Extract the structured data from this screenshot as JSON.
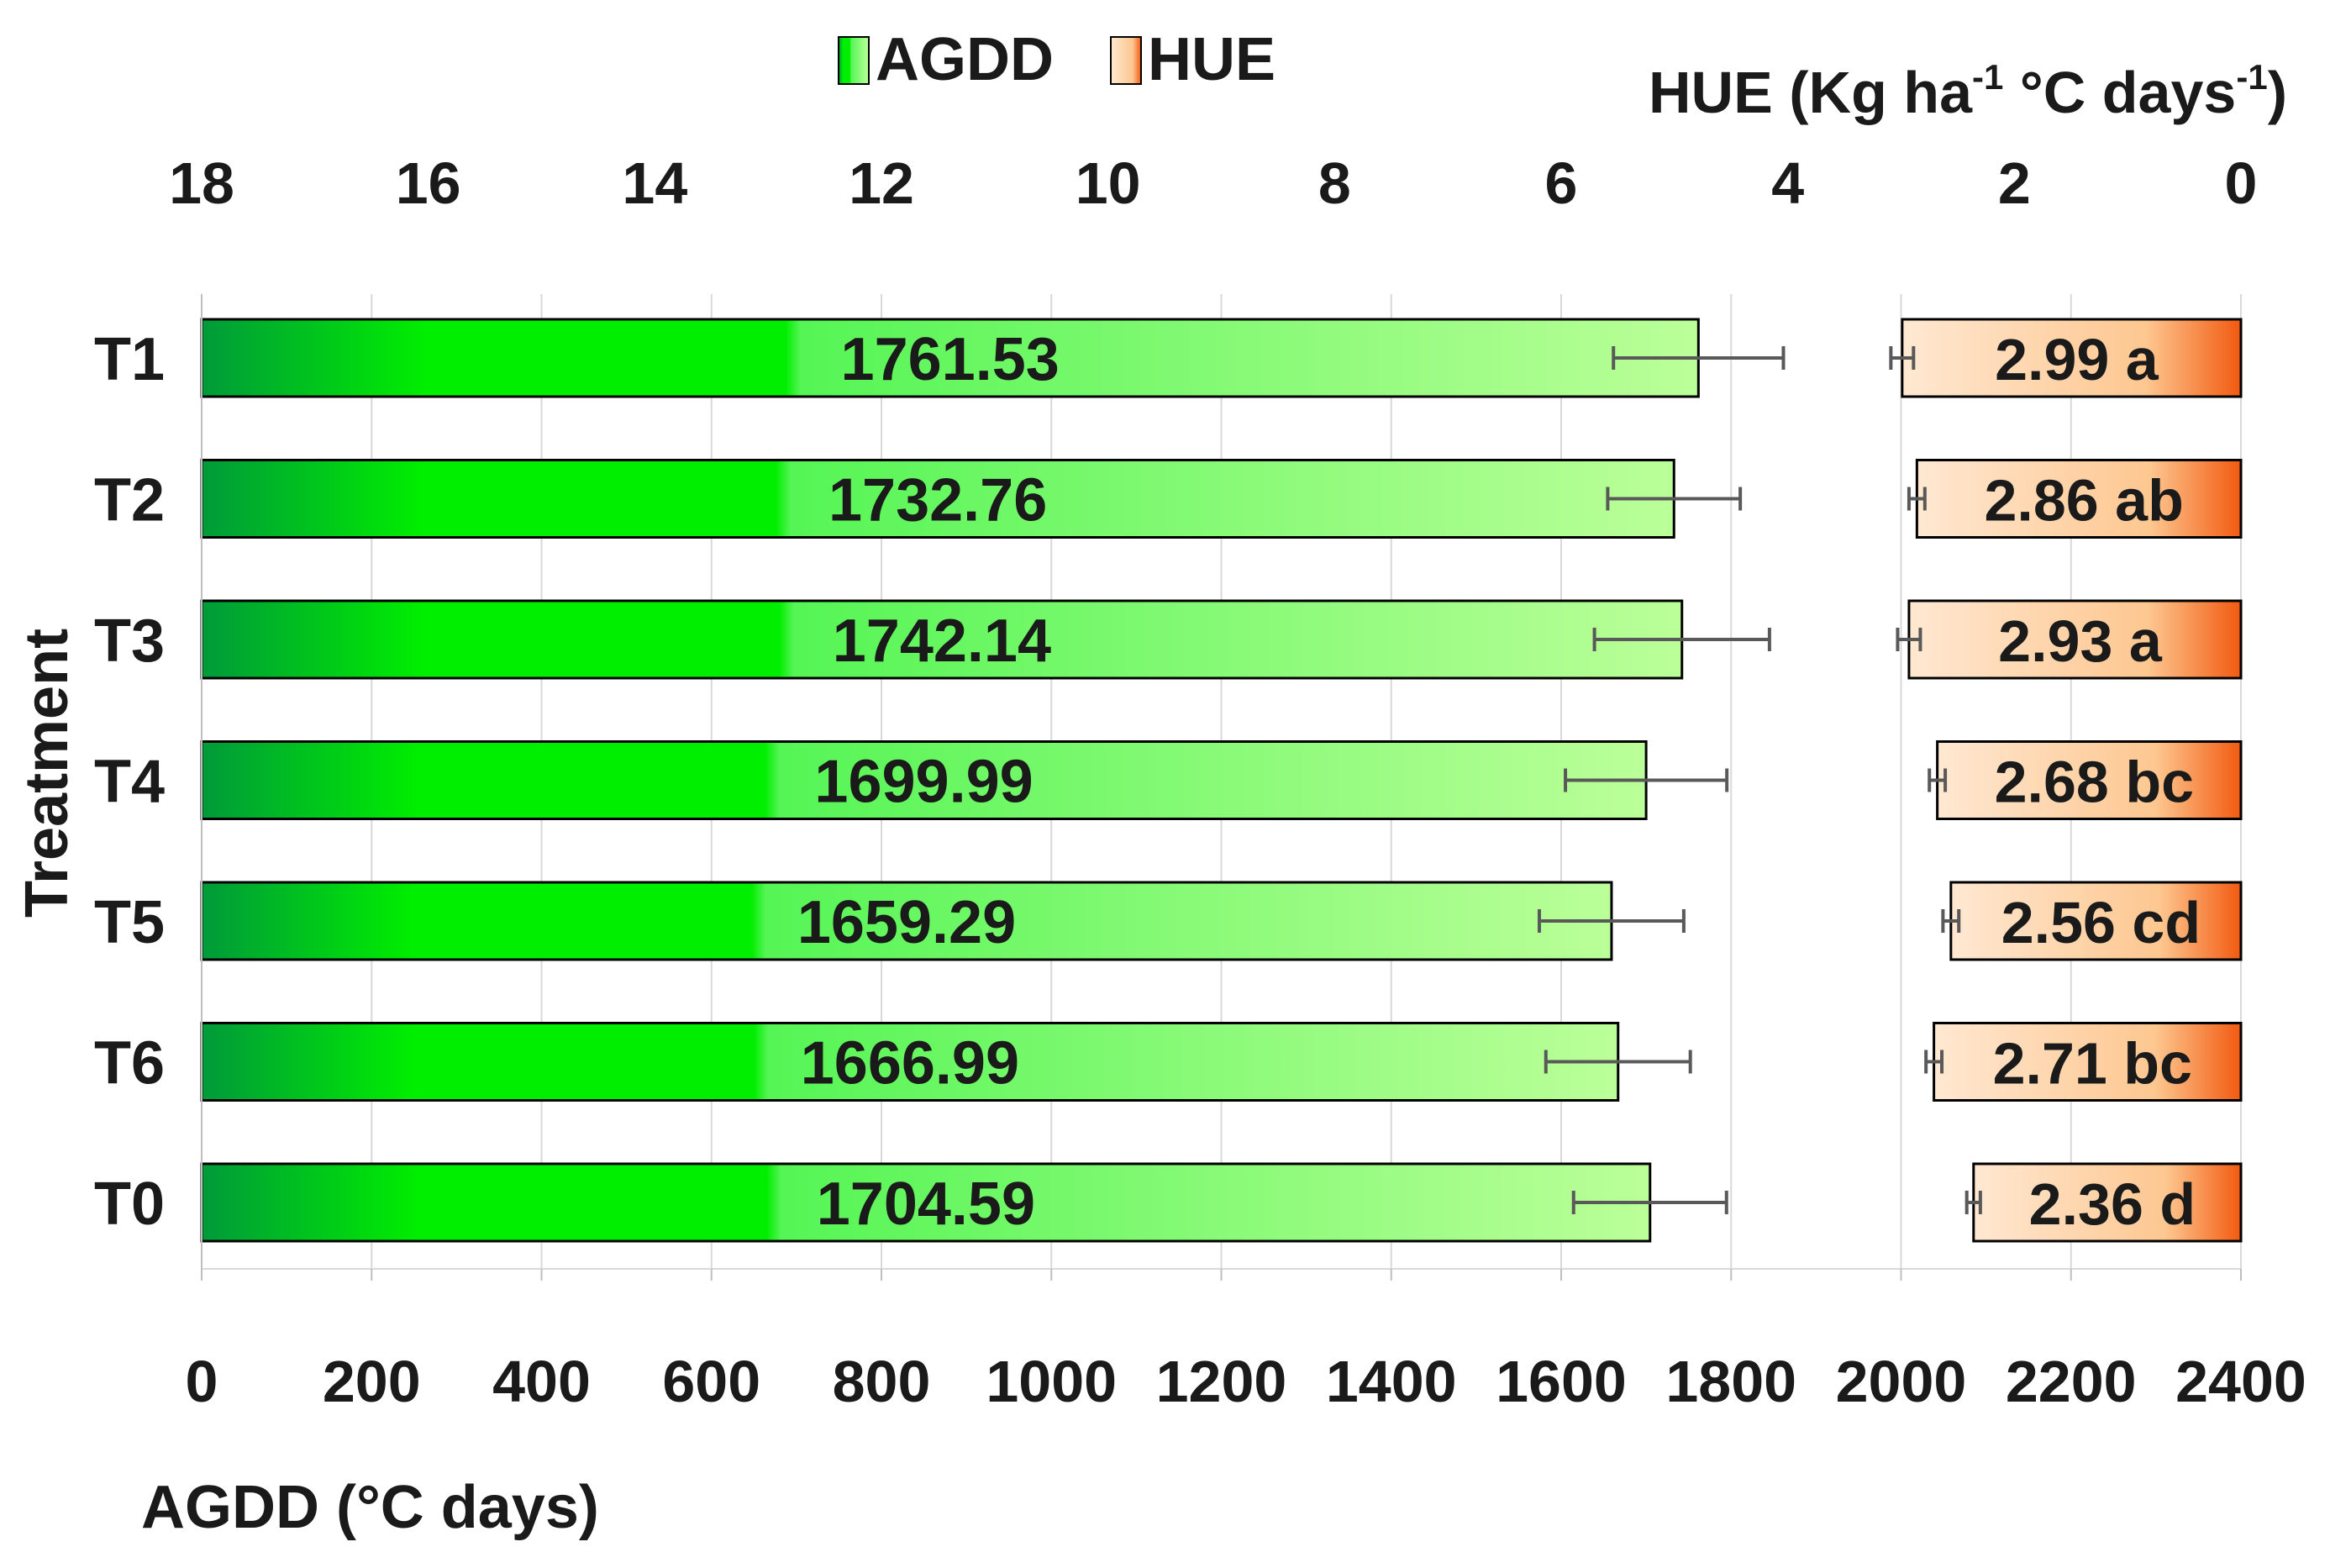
{
  "chart_data": {
    "type": "bar",
    "orientation": "horizontal",
    "categories": [
      "T1",
      "T2",
      "T3",
      "T4",
      "T5",
      "T6",
      "T0"
    ],
    "y_axis_title": "Treatment",
    "legend": {
      "placement": "top",
      "entries": [
        {
          "name": "AGDD",
          "swatch": "#22d322"
        },
        {
          "name": "HUE",
          "swatch": "#ffd2a8"
        }
      ]
    },
    "bottom_axis": {
      "title": "AGDD (°C days)",
      "range": [
        0,
        2400
      ],
      "ticks": [
        0,
        200,
        400,
        600,
        800,
        1000,
        1200,
        1400,
        1600,
        1800,
        2000,
        2200,
        2400
      ],
      "tick_labels": [
        "0",
        "200",
        "400",
        "600",
        "800",
        "1000",
        "1200",
        "1400",
        "1600",
        "1800",
        "2000",
        "2200",
        "2400"
      ]
    },
    "top_axis": {
      "title_main": "HUE (Kg ha",
      "title_sup1": "-1",
      "title_mid": " °C days",
      "title_sup2": "-1",
      "title_end": ")",
      "range": [
        18,
        0
      ],
      "reversed": true,
      "ticks": [
        18,
        16,
        14,
        12,
        10,
        8,
        6,
        4,
        2,
        0
      ],
      "tick_labels": [
        "18",
        "16",
        "14",
        "12",
        "10",
        "8",
        "6",
        "4",
        "2",
        "0"
      ]
    },
    "grid": true,
    "series": [
      {
        "name": "AGDD",
        "axis": "bottom",
        "values": [
          1761.53,
          1732.76,
          1742.14,
          1699.99,
          1659.29,
          1666.99,
          1704.59
        ],
        "error": [
          100,
          78,
          103,
          95,
          85,
          85,
          90
        ],
        "labels": [
          "1761.53",
          "1732.76",
          "1742.14",
          "1699.99",
          "1659.29",
          "1666.99",
          "1704.59"
        ],
        "colors": {
          "start": "#009a3a",
          "mid": "#00ee00",
          "mid2": "#55f555",
          "end": "#bbff99"
        }
      },
      {
        "name": "HUE",
        "axis": "top",
        "values": [
          2.99,
          2.86,
          2.93,
          2.68,
          2.56,
          2.71,
          2.36
        ],
        "error": [
          0.1,
          0.07,
          0.1,
          0.07,
          0.07,
          0.07,
          0.06
        ],
        "labels": [
          "2.99 a",
          "2.86 ab",
          "2.93 a",
          "2.68 bc",
          "2.56 cd",
          "2.71 bc",
          "2.36 d"
        ],
        "colors": {
          "start": "#ffe8d2",
          "mid": "#fdc790",
          "end": "#f25a10"
        }
      }
    ]
  }
}
